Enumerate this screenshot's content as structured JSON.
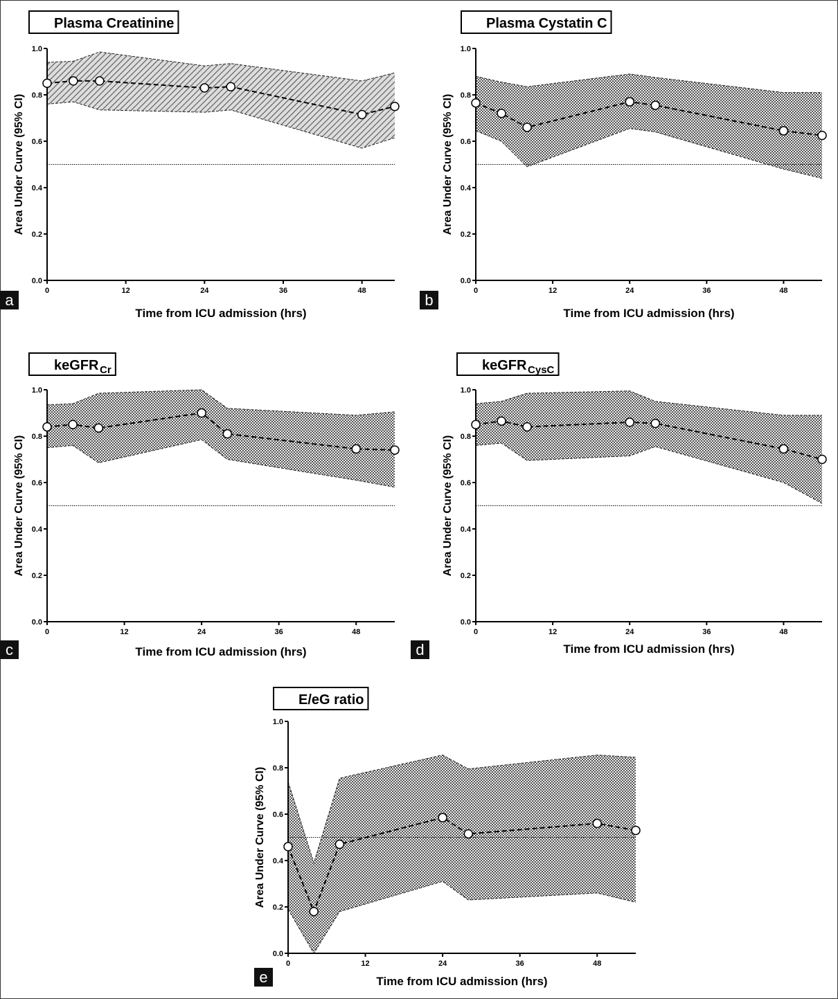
{
  "chart_data": [
    {
      "type": "line",
      "panel": "a",
      "title": "Plasma Creatinine",
      "x_label": "Time from ICU admission (hrs)",
      "y_label": "Area Under Curve (95% CI)",
      "x": [
        0,
        4,
        8,
        24,
        28,
        48,
        53
      ],
      "values": [
        0.85,
        0.86,
        0.86,
        0.83,
        0.835,
        0.715,
        0.75
      ],
      "ci_lower": [
        0.76,
        0.77,
        0.735,
        0.725,
        0.735,
        0.57,
        0.615
      ],
      "ci_upper": [
        0.94,
        0.945,
        0.985,
        0.925,
        0.935,
        0.86,
        0.895
      ],
      "fill_pattern": "hatch",
      "color": "#000000",
      "ref_line": 0.5,
      "xlim": [
        0,
        53
      ],
      "xticks": [
        0,
        12,
        24,
        36,
        48
      ],
      "ylim": [
        0,
        1
      ],
      "yticks": [
        {
          "value": 0,
          "label": "0.0"
        },
        0.2,
        0.4,
        0.6,
        0.8,
        {
          "value": 1,
          "label": "1.0"
        }
      ]
    },
    {
      "type": "line",
      "panel": "b",
      "title": "Plasma Cystatin C",
      "x_label": "Time from ICU admission (hrs)",
      "y_label": "Area Under Curve (95% CI)",
      "x": [
        0,
        4,
        8,
        24,
        28,
        48,
        54
      ],
      "values": [
        0.765,
        0.72,
        0.66,
        0.77,
        0.755,
        0.645,
        0.625
      ],
      "ci_lower": [
        0.645,
        0.6,
        0.49,
        0.655,
        0.64,
        0.48,
        0.44
      ],
      "ci_upper": [
        0.88,
        0.855,
        0.835,
        0.89,
        0.875,
        0.81,
        0.81
      ],
      "fill_pattern": "checker",
      "color": "#000000",
      "ref_line": 0.5,
      "xlim": [
        0,
        54
      ],
      "xticks": [
        0,
        12,
        24,
        36,
        48
      ],
      "ylim": [
        0,
        1
      ],
      "yticks": [
        {
          "value": 0,
          "label": "0.0"
        },
        0.2,
        0.4,
        0.6,
        0.8,
        {
          "value": 1,
          "label": "1.0"
        }
      ]
    },
    {
      "type": "line",
      "panel": "c",
      "title": "keGFR",
      "title_subscript": "Cr",
      "x_label": "Time from ICU admission (hrs)",
      "y_label": "Area Under Curve (95% CI)",
      "x": [
        0,
        4,
        8,
        24,
        28,
        48,
        54
      ],
      "values": [
        0.84,
        0.85,
        0.835,
        0.9,
        0.81,
        0.745,
        0.74
      ],
      "ci_lower": [
        0.75,
        0.76,
        0.685,
        0.785,
        0.7,
        0.61,
        0.58
      ],
      "ci_upper": [
        0.935,
        0.94,
        0.985,
        1.0,
        0.92,
        0.89,
        0.905
      ],
      "fill_pattern": "checker",
      "color": "#000000",
      "ref_line": 0.5,
      "xlim": [
        0,
        54
      ],
      "xticks": [
        0,
        12,
        24,
        36,
        48
      ],
      "ylim": [
        0,
        1
      ],
      "yticks": [
        {
          "value": 0,
          "label": "0.0"
        },
        0.2,
        0.4,
        0.6,
        0.8,
        {
          "value": 1,
          "label": "1.0"
        }
      ]
    },
    {
      "type": "line",
      "panel": "d",
      "title": "keGFR",
      "title_subscript": "CysC",
      "x_label": "Time from ICU admission (hrs)",
      "y_label": "Area Under Curve (95% CI)",
      "x": [
        0,
        4,
        8,
        24,
        28,
        48,
        54
      ],
      "values": [
        0.85,
        0.865,
        0.84,
        0.86,
        0.855,
        0.745,
        0.7
      ],
      "ci_lower": [
        0.76,
        0.77,
        0.695,
        0.715,
        0.755,
        0.6,
        0.51
      ],
      "ci_upper": [
        0.94,
        0.95,
        0.985,
        0.995,
        0.95,
        0.89,
        0.89
      ],
      "fill_pattern": "checker",
      "color": "#000000",
      "ref_line": 0.5,
      "xlim": [
        0,
        54
      ],
      "xticks": [
        0,
        12,
        24,
        36,
        48
      ],
      "ylim": [
        0,
        1
      ],
      "yticks": [
        {
          "value": 0,
          "label": "0.0"
        },
        0.2,
        0.4,
        0.6,
        0.8,
        {
          "value": 1,
          "label": "1.0"
        }
      ]
    },
    {
      "type": "line",
      "panel": "e",
      "title": "E/eG ratio",
      "x_label": "Time from ICU admission (hrs)",
      "y_label": "Area Under Curve (95% CI)",
      "x": [
        0,
        4,
        8,
        24,
        28,
        48,
        54
      ],
      "values": [
        0.46,
        0.18,
        0.47,
        0.585,
        0.515,
        0.56,
        0.53
      ],
      "ci_lower": [
        0.19,
        0.0,
        0.18,
        0.31,
        0.23,
        0.26,
        0.22
      ],
      "ci_upper": [
        0.74,
        0.39,
        0.755,
        0.855,
        0.795,
        0.855,
        0.845
      ],
      "fill_pattern": "checker",
      "color": "#000000",
      "ref_line": 0.5,
      "xlim": [
        0,
        54
      ],
      "xticks": [
        0,
        12,
        24,
        36,
        48
      ],
      "ylim": [
        0,
        1
      ],
      "yticks": [
        {
          "value": 0,
          "label": "0.0"
        },
        0.2,
        0.4,
        0.6,
        0.8,
        {
          "value": 1,
          "label": "1.0"
        }
      ]
    }
  ]
}
